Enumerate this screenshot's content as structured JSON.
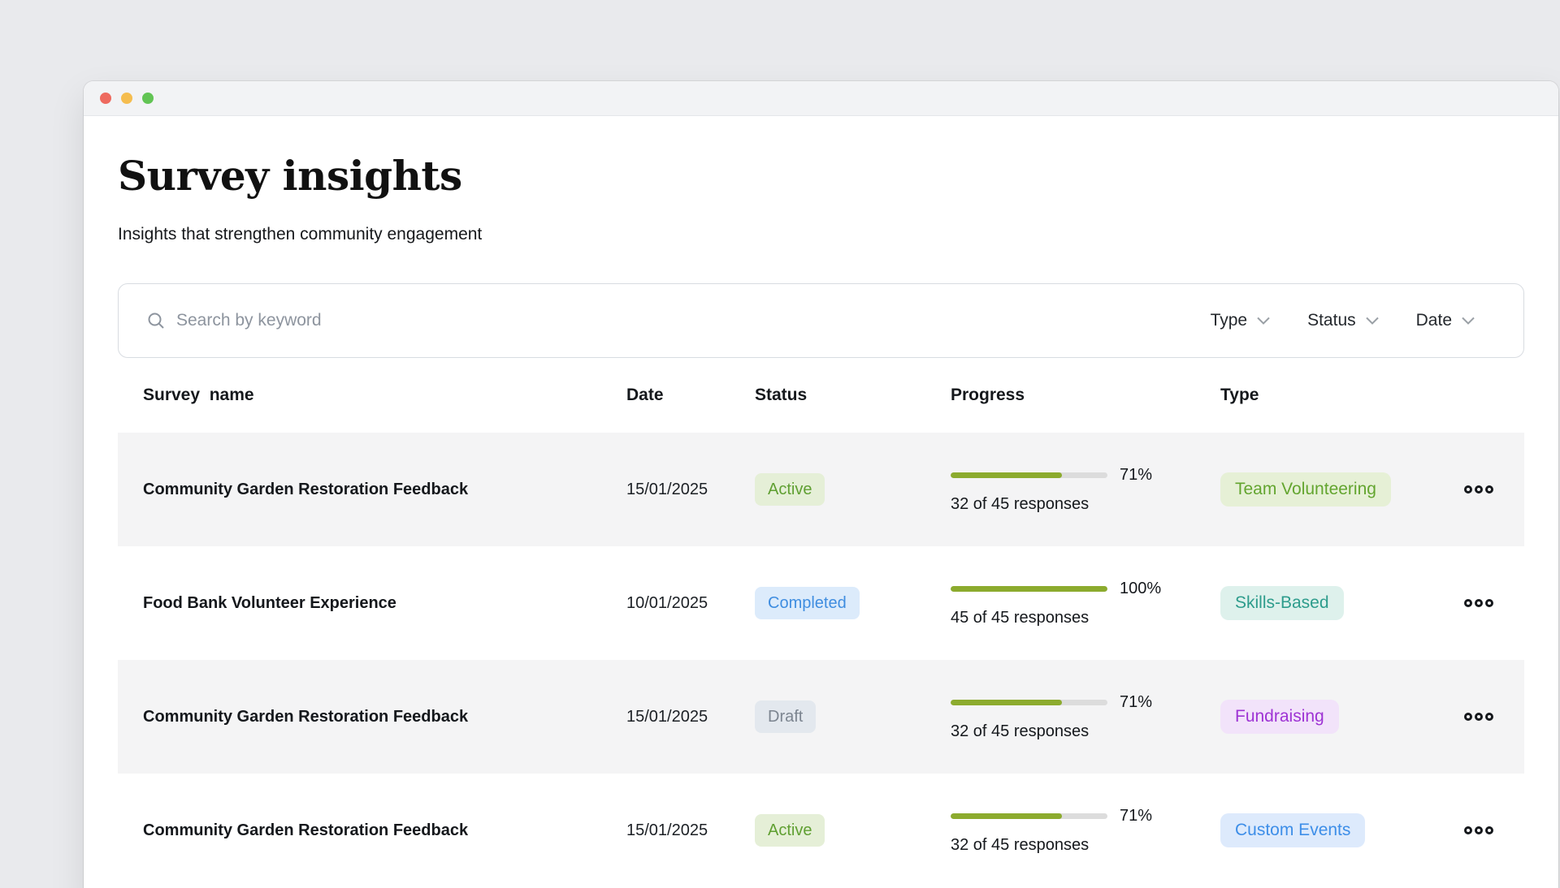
{
  "window": {
    "traffic_lights": {
      "close": "#ee6a5f",
      "minimize": "#f5bd4f",
      "zoom": "#62c454"
    }
  },
  "header": {
    "title": "Survey insights",
    "subtitle": "Insights that strengthen community engagement"
  },
  "search": {
    "placeholder": "Search by keyword",
    "value": "",
    "filters": [
      {
        "label": "Type"
      },
      {
        "label": "Status"
      },
      {
        "label": "Date"
      }
    ]
  },
  "colors": {
    "progress_fill": "#8cab2e",
    "progress_track": "#dcdcdc",
    "badge_styles": {
      "active": {
        "bg": "#e5efd7",
        "fg": "#5f9f31"
      },
      "completed": {
        "bg": "#dcebfb",
        "fg": "#3f8de0"
      },
      "draft": {
        "bg": "#e3e8ee",
        "fg": "#7c8590"
      },
      "team-volunteering": {
        "bg": "#e6f0d6",
        "fg": "#63a52f"
      },
      "skills-based": {
        "bg": "#def1ec",
        "fg": "#2d9c8c"
      },
      "fundraising": {
        "bg": "#f2e3fa",
        "fg": "#9e33d4"
      },
      "custom-events": {
        "bg": "#ddeafc",
        "fg": "#3d8ee8"
      }
    }
  },
  "table": {
    "columns": [
      "Survey  name",
      "Date",
      "Status",
      "Progress",
      "Type"
    ],
    "rows": [
      {
        "name": "Community Garden Restoration Feedback",
        "date": "15/01/2025",
        "status": "Active",
        "status_key": "active",
        "progress_pct": 71,
        "progress_label": "71%",
        "responses": "32 of 45 responses",
        "type": "Team Volunteering",
        "type_key": "team-volunteering"
      },
      {
        "name": "Food Bank Volunteer Experience",
        "date": "10/01/2025",
        "status": "Completed",
        "status_key": "completed",
        "progress_pct": 100,
        "progress_label": "100%",
        "responses": "45 of 45 responses",
        "type": "Skills-Based",
        "type_key": "skills-based"
      },
      {
        "name": "Community Garden Restoration Feedback",
        "date": "15/01/2025",
        "status": "Draft",
        "status_key": "draft",
        "progress_pct": 71,
        "progress_label": "71%",
        "responses": "32 of 45 responses",
        "type": "Fundraising",
        "type_key": "fundraising"
      },
      {
        "name": "Community Garden Restoration Feedback",
        "date": "15/01/2025",
        "status": "Active",
        "status_key": "active",
        "progress_pct": 71,
        "progress_label": "71%",
        "responses": "32 of 45 responses",
        "type": "Custom Events",
        "type_key": "custom-events"
      }
    ]
  }
}
